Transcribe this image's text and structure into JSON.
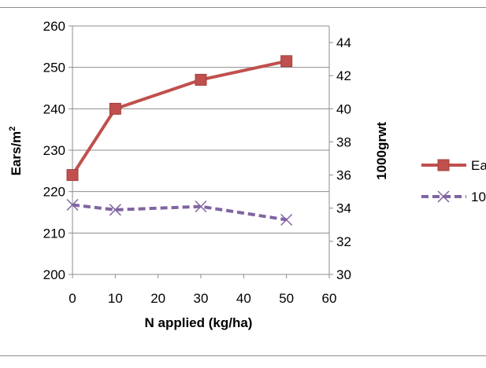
{
  "chart_data": {
    "type": "line",
    "xlabel": "N applied (kg/ha)",
    "ylabel": "Ears/m",
    "ylabel_sup": "2",
    "y2label": "1000grwt",
    "xlim": [
      0,
      60
    ],
    "ylim": [
      200,
      260
    ],
    "y2lim": [
      30,
      45
    ],
    "x_ticks": [
      "0",
      "10",
      "20",
      "30",
      "40",
      "50",
      "60"
    ],
    "y_ticks": [
      "200",
      "210",
      "220",
      "230",
      "240",
      "250",
      "260"
    ],
    "y2_ticks": [
      "30",
      "32",
      "34",
      "36",
      "38",
      "40",
      "42",
      "44"
    ],
    "grid": "horizontal",
    "legend_position": "right",
    "series": [
      {
        "name": "Ea",
        "axis": "left",
        "color": "#c0504d",
        "marker": "square",
        "line": "solid",
        "x": [
          0,
          10,
          30,
          50
        ],
        "values": [
          224,
          240,
          247,
          251.5
        ]
      },
      {
        "name": "10",
        "axis": "right",
        "color": "#8064a2",
        "marker": "x",
        "line": "dashed",
        "x": [
          0,
          10,
          30,
          50
        ],
        "values": [
          34.2,
          33.9,
          34.1,
          33.3
        ]
      }
    ]
  }
}
